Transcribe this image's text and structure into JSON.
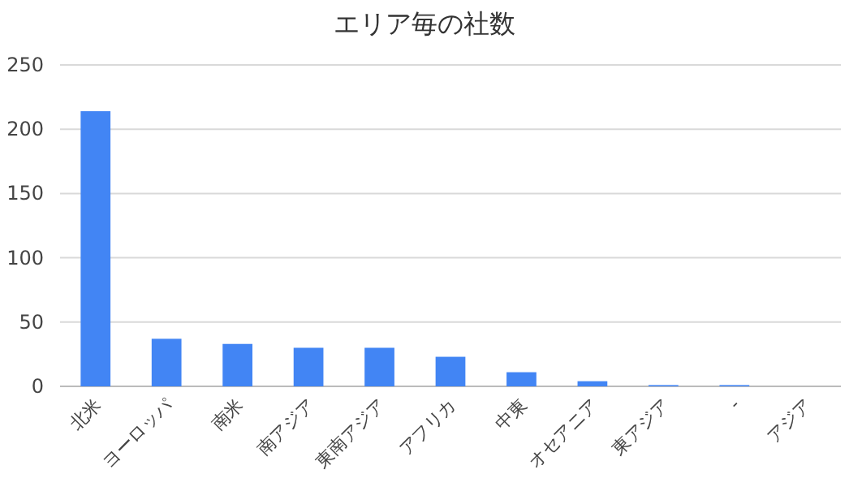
{
  "chart_data": {
    "type": "bar",
    "title": "エリア毎の社数",
    "categories": [
      "北米",
      "ヨーロッパ",
      "南米",
      "南アジア",
      "東南アジア",
      "アフリカ",
      "中東",
      "オセアニア",
      "東アジア",
      "-",
      "アジア"
    ],
    "values": [
      214,
      37,
      33,
      30,
      30,
      23,
      11,
      4,
      1,
      1,
      0
    ],
    "color": "#4285f4",
    "ylim": [
      0,
      250
    ],
    "yticks": [
      0,
      50,
      100,
      150,
      200,
      250
    ],
    "grid": "y"
  }
}
